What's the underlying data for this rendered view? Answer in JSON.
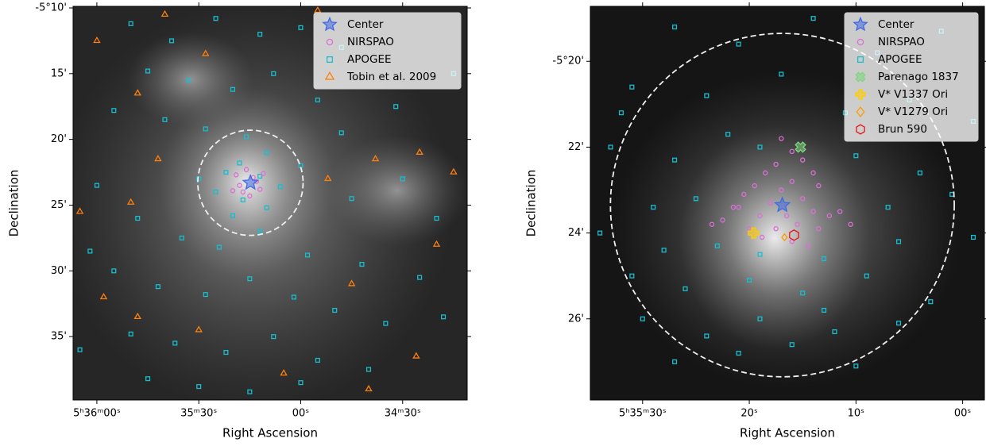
{
  "chart_data": [
    {
      "type": "scatter",
      "xlabel": "Right Ascension",
      "ylabel": "Declination",
      "xlim": [
        2167,
        2051
      ],
      "ylim": [
        -9.88,
        -39.82
      ],
      "xticks": [
        {
          "value": 2160,
          "label": "5ʰ36ᵐ00ˢ"
        },
        {
          "value": 2130,
          "label": "35ᵐ30ˢ"
        },
        {
          "value": 2100,
          "label": "00ˢ"
        },
        {
          "value": 2070,
          "label": "34ᵐ30ˢ"
        }
      ],
      "yticks": [
        {
          "value": -10,
          "label": "-5°10'"
        },
        {
          "value": -15,
          "label": "15'"
        },
        {
          "value": -20,
          "label": "20'"
        },
        {
          "value": -25,
          "label": "25'"
        },
        {
          "value": -30,
          "label": "30'"
        },
        {
          "value": -35,
          "label": "35'"
        }
      ],
      "legend": "upper right",
      "circle": {
        "center": [
          2114.8,
          -23.3
        ],
        "radius": 4
      },
      "series": [
        {
          "name": "APOGEE",
          "color": "#17becf",
          "marker": "square",
          "filled": false,
          "x": [
            2150,
            2138,
            2125,
            2112,
            2100,
            2088,
            2145,
            2133,
            2120,
            2108,
            2095,
            2155,
            2140,
            2128,
            2116,
            2110,
            2118,
            2122,
            2112,
            2106,
            2125,
            2117,
            2110,
            2120,
            2130,
            2100,
            2085,
            2070,
            2060,
            2160,
            2148,
            2135,
            2124,
            2112,
            2098,
            2082,
            2065,
            2155,
            2142,
            2128,
            2115,
            2102,
            2090,
            2075,
            2058,
            2150,
            2137,
            2122,
            2108,
            2095,
            2080,
            2145,
            2130,
            2115,
            2100,
            2165,
            2162,
            2088,
            2072,
            2055
          ],
          "values": [
            -11.2,
            -12.5,
            -10.8,
            -12.0,
            -11.5,
            -13.0,
            -14.8,
            -15.5,
            -16.2,
            -15.0,
            -17.0,
            -17.8,
            -18.5,
            -19.2,
            -19.8,
            -21.0,
            -21.8,
            -22.5,
            -22.8,
            -23.6,
            -24.0,
            -24.6,
            -25.2,
            -25.8,
            -23.0,
            -22.0,
            -24.5,
            -23.0,
            -26.0,
            -23.5,
            -26.0,
            -27.5,
            -28.2,
            -27.0,
            -28.8,
            -29.5,
            -30.5,
            -30.0,
            -31.2,
            -31.8,
            -30.6,
            -32.0,
            -33.0,
            -34.0,
            -33.5,
            -34.8,
            -35.5,
            -36.2,
            -35.0,
            -36.8,
            -37.5,
            -38.2,
            -38.8,
            -39.2,
            -38.5,
            -36.0,
            -28.5,
            -19.5,
            -17.5,
            -15.0
          ]
        },
        {
          "name": "Tobin et al. 2009",
          "color": "#ff7f0e",
          "marker": "triangle",
          "filled": false,
          "x": [
            2160,
            2148,
            2142,
            2150,
            2165,
            2158,
            2148,
            2130,
            2092,
            2078,
            2065,
            2055,
            2060,
            2066,
            2080,
            2105,
            2140,
            2095,
            2128,
            2085
          ],
          "values": [
            -12.5,
            -16.5,
            -21.5,
            -24.8,
            -25.5,
            -32.0,
            -33.5,
            -34.5,
            -23.0,
            -21.5,
            -21.0,
            -22.5,
            -28.0,
            -36.5,
            -39.0,
            -37.8,
            -10.5,
            -10.2,
            -13.5,
            -31.0
          ]
        },
        {
          "name": "NIRSPAO",
          "color": "#da70d6",
          "marker": "circle",
          "filled": false,
          "x": [
            2116,
            2114,
            2118,
            2112,
            2115,
            2119,
            2113,
            2117,
            2111,
            2120
          ],
          "values": [
            -22.3,
            -22.9,
            -23.5,
            -23.8,
            -24.3,
            -22.7,
            -23.2,
            -24.0,
            -22.6,
            -23.9
          ]
        },
        {
          "name": "Center",
          "color": "#4169e1",
          "marker": "star",
          "filled": true,
          "x": [
            2114.8
          ],
          "values": [
            -23.3
          ]
        }
      ],
      "legend_order": [
        3,
        2,
        0,
        1
      ]
    },
    {
      "type": "scatter",
      "xlabel": "Right Ascension",
      "ylabel": "Declination",
      "xlim": [
        2134.9,
        2097.96
      ],
      "ylim": [
        -18.72,
        -27.89
      ],
      "xticks": [
        {
          "value": 2130,
          "label": "5ʰ35ᵐ30ˢ"
        },
        {
          "value": 2120,
          "label": "20ˢ"
        },
        {
          "value": 2110,
          "label": "10ˢ"
        },
        {
          "value": 2100,
          "label": "00ˢ"
        }
      ],
      "yticks": [
        {
          "value": -20,
          "label": "-5°20'"
        },
        {
          "value": -22,
          "label": "22'"
        },
        {
          "value": -24,
          "label": "24'"
        },
        {
          "value": -26,
          "label": "26'"
        }
      ],
      "legend": "upper right",
      "circle": {
        "center": [
          2116.9,
          -23.35
        ],
        "radius": 4
      },
      "series": [
        {
          "name": "APOGEE",
          "color": "#17becf",
          "marker": "square",
          "filled": false,
          "x": [
            2127,
            2121,
            2114,
            2108,
            2102,
            2131,
            2124,
            2117,
            2111,
            2105,
            2099,
            2133,
            2127,
            2122,
            2110,
            2104,
            2129,
            2125,
            2107,
            2101,
            2134,
            2128,
            2123,
            2119,
            2113,
            2106,
            2099,
            2131,
            2126,
            2120,
            2115,
            2109,
            2103,
            2130,
            2124,
            2119,
            2112,
            2106,
            2127,
            2121,
            2116,
            2110,
            2132,
            2119,
            2113
          ],
          "values": [
            -19.2,
            -19.6,
            -19.0,
            -19.8,
            -19.3,
            -20.6,
            -20.8,
            -20.3,
            -21.2,
            -20.9,
            -21.4,
            -22.0,
            -22.3,
            -21.7,
            -22.2,
            -22.6,
            -23.4,
            -23.2,
            -23.4,
            -23.1,
            -24.0,
            -24.4,
            -24.3,
            -24.5,
            -24.6,
            -24.2,
            -24.1,
            -25.0,
            -25.3,
            -25.1,
            -25.4,
            -25.0,
            -25.6,
            -26.0,
            -26.4,
            -26.0,
            -26.3,
            -26.1,
            -27.0,
            -26.8,
            -26.6,
            -27.1,
            -21.2,
            -22.0,
            -25.8
          ]
        },
        {
          "name": "NIRSPAO",
          "color": "#da70d6",
          "marker": "circle",
          "filled": false,
          "x": [
            2116,
            2115,
            2117.5,
            2114,
            2118.5,
            2116,
            2119.5,
            2113.5,
            2117,
            2120.5,
            2115,
            2118,
            2121.5,
            2114,
            2116.5,
            2119,
            2112.5,
            2122.5,
            2115.5,
            2117.5,
            2120,
            2113.5,
            2118.8,
            2116,
            2121,
            2111.5,
            2123.5,
            2114.5,
            2117,
            2110.5
          ],
          "values": [
            -22.1,
            -22.3,
            -22.4,
            -22.6,
            -22.6,
            -22.8,
            -22.9,
            -22.9,
            -23.0,
            -23.1,
            -23.2,
            -23.3,
            -23.4,
            -23.5,
            -23.6,
            -23.6,
            -23.6,
            -23.7,
            -23.8,
            -23.9,
            -23.9,
            -23.9,
            -24.1,
            -24.2,
            -23.4,
            -23.5,
            -23.8,
            -24.3,
            -21.8,
            -23.8
          ]
        },
        {
          "name": "Center",
          "color": "#4169e1",
          "marker": "star",
          "filled": true,
          "x": [
            2116.9
          ],
          "values": [
            -23.35
          ]
        },
        {
          "name": "Parenago 1837",
          "color": "#7fd67f",
          "marker": "x",
          "filled": true,
          "x": [
            2115.2
          ],
          "values": [
            -22.0
          ]
        },
        {
          "name": "V* V1337 Ori",
          "color": "#ffcc00",
          "marker": "plus",
          "filled": true,
          "x": [
            2119.6
          ],
          "values": [
            -24.0
          ]
        },
        {
          "name": "V* V1279 Ori",
          "color": "#ff9900",
          "marker": "diamond",
          "filled": false,
          "x": [
            2116.7
          ],
          "values": [
            -24.1
          ]
        },
        {
          "name": "Brun 590",
          "color": "#e81010",
          "marker": "hexagon",
          "filled": false,
          "x": [
            2115.8
          ],
          "values": [
            -24.05
          ]
        }
      ],
      "legend_order": [
        2,
        1,
        0,
        3,
        4,
        5,
        6
      ]
    }
  ]
}
